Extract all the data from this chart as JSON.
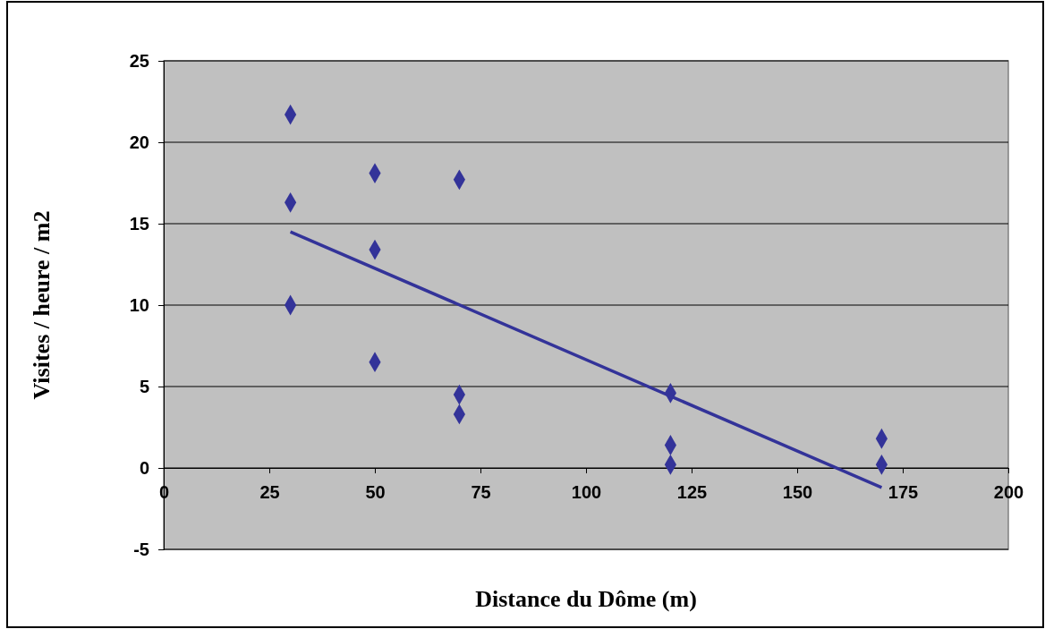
{
  "chart_data": {
    "type": "scatter",
    "xlabel": "Distance du Dôme (m)",
    "ylabel": "Visites / heure / m2",
    "xlim": [
      0,
      200
    ],
    "xticks": [
      0,
      25,
      50,
      75,
      100,
      125,
      150,
      175,
      200
    ],
    "ylim": [
      -5,
      25
    ],
    "yticks": [
      -5,
      0,
      5,
      10,
      15,
      20,
      25
    ],
    "grid": "y",
    "marker": "diamond",
    "series": [
      {
        "color": "#333399",
        "x": [
          30,
          30,
          30,
          50,
          50,
          50,
          70,
          70,
          70,
          120,
          120,
          120,
          170,
          170
        ],
        "values": [
          21.7,
          16.3,
          10,
          18.1,
          13.4,
          6.5,
          17.7,
          4.5,
          3.3,
          4.6,
          1.4,
          0.2,
          1.8,
          0.2
        ]
      },
      {
        "type": "line",
        "color": "#333399",
        "marker": "none",
        "line_style": "solid",
        "x": [
          30,
          170
        ],
        "values": [
          14.5,
          -1.2
        ]
      }
    ]
  }
}
